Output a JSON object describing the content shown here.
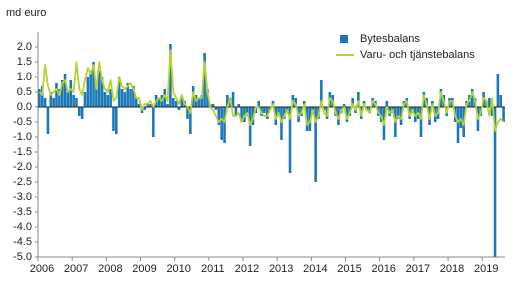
{
  "chart_data": {
    "type": "bar-line",
    "y_axis_label": "md euro",
    "categories": [
      "2006",
      null,
      null,
      null,
      null,
      null,
      null,
      null,
      null,
      null,
      null,
      null,
      "2007",
      null,
      null,
      null,
      null,
      null,
      null,
      null,
      null,
      null,
      null,
      null,
      "2008",
      null,
      null,
      null,
      null,
      null,
      null,
      null,
      null,
      null,
      null,
      null,
      "2009",
      null,
      null,
      null,
      null,
      null,
      null,
      null,
      null,
      null,
      null,
      null,
      "2010",
      null,
      null,
      null,
      null,
      null,
      null,
      null,
      null,
      null,
      null,
      null,
      "2011",
      null,
      null,
      null,
      null,
      null,
      null,
      null,
      null,
      null,
      null,
      null,
      "2012",
      null,
      null,
      null,
      null,
      null,
      null,
      null,
      null,
      null,
      null,
      null,
      "2013",
      null,
      null,
      null,
      null,
      null,
      null,
      null,
      null,
      null,
      null,
      null,
      "2014",
      null,
      null,
      null,
      null,
      null,
      null,
      null,
      null,
      null,
      null,
      null,
      "2015",
      null,
      null,
      null,
      null,
      null,
      null,
      null,
      null,
      null,
      null,
      null,
      "2016",
      null,
      null,
      null,
      null,
      null,
      null,
      null,
      null,
      null,
      null,
      null,
      "2017",
      null,
      null,
      null,
      null,
      null,
      null,
      null,
      null,
      null,
      null,
      null,
      "2018",
      null,
      null,
      null,
      null,
      null,
      null,
      null,
      null,
      null,
      null,
      null,
      "2019",
      null,
      null,
      null,
      null,
      null,
      null,
      null
    ],
    "series": [
      {
        "name": "Bytesbalans",
        "color": "#1a78b8",
        "type": "bar",
        "values": [
          0.6,
          0.7,
          0.3,
          -0.9,
          0.5,
          0.3,
          0.8,
          0.6,
          0.9,
          1.1,
          0.5,
          0.9,
          0.4,
          0.3,
          -0.3,
          -0.4,
          0.5,
          1.0,
          1.2,
          1.5,
          0.8,
          1.2,
          1.0,
          0.5,
          0.4,
          0.6,
          -0.8,
          -0.9,
          1.0,
          0.6,
          0.5,
          0.8,
          0.6,
          0.7,
          0.3,
          0.1,
          -0.2,
          -0.1,
          0.1,
          0.1,
          -1.0,
          0.4,
          0.3,
          0.4,
          0.6,
          0.1,
          2.1,
          0.3,
          0.2,
          -0.1,
          0.3,
          0.2,
          -0.4,
          -0.9,
          0.7,
          0.4,
          0.3,
          0.4,
          1.8,
          0.6,
          0.1,
          0.1,
          -0.1,
          -0.6,
          -1.1,
          -1.2,
          0.4,
          0.3,
          0.5,
          -0.3,
          0.1,
          -0.5,
          -0.5,
          -0.3,
          -1.3,
          -0.6,
          -0.2,
          0.2,
          -0.3,
          -0.2,
          -0.4,
          -0.1,
          0.2,
          -0.6,
          -0.3,
          -1.1,
          -0.4,
          -0.2,
          -2.2,
          0.4,
          0.3,
          -0.5,
          -0.3,
          0.2,
          -0.8,
          -0.8,
          -0.2,
          -2.5,
          -0.4,
          0.9,
          -0.1,
          -0.4,
          0.5,
          0.4,
          -0.3,
          -0.6,
          -0.2,
          0.1,
          -0.5,
          -0.3,
          0.3,
          -0.2,
          0.5,
          -0.4,
          0.2,
          -0.1,
          -0.2,
          0.3,
          0.2,
          -0.3,
          -0.5,
          -1.1,
          0.2,
          -0.3,
          -0.2,
          -1.0,
          -0.4,
          -0.6,
          0.2,
          0.3,
          -0.4,
          -0.2,
          -0.5,
          -0.4,
          -1.0,
          0.5,
          0.3,
          -0.6,
          0.2,
          -0.5,
          -0.4,
          0.6,
          0.4,
          -0.3,
          0.3,
          0.3,
          -0.5,
          -1.2,
          -0.7,
          -1.0,
          0.2,
          0.4,
          0.6,
          0.3,
          -0.8,
          -0.3,
          0.5,
          0.2,
          0.3,
          -0.3,
          -5.0,
          1.1,
          0.4,
          -0.5
        ]
      },
      {
        "name": "Varu- och tjänstebalans",
        "color": "#b5d334",
        "type": "line",
        "values": [
          0.5,
          0.4,
          1.4,
          0.7,
          0.4,
          0.5,
          0.6,
          0.4,
          0.8,
          0.9,
          0.5,
          0.6,
          0.5,
          1.5,
          0.6,
          0.4,
          0.9,
          1.3,
          1.1,
          1.4,
          0.6,
          1.5,
          0.9,
          0.6,
          0.5,
          0.9,
          0.2,
          0.3,
          1.0,
          0.7,
          0.6,
          0.7,
          0.8,
          0.6,
          0.3,
          0.3,
          -0.1,
          0.1,
          0.1,
          0.2,
          0.0,
          0.2,
          0.3,
          0.2,
          0.4,
          0.2,
          1.9,
          0.5,
          0.3,
          0.1,
          0.4,
          0.1,
          0.0,
          -0.2,
          0.5,
          0.2,
          0.3,
          0.3,
          1.5,
          0.5,
          0.0,
          -0.1,
          -0.3,
          -0.5,
          -0.4,
          -0.5,
          0.0,
          0.3,
          -0.3,
          -0.3,
          -0.2,
          -0.5,
          -0.3,
          -0.2,
          -0.6,
          -0.4,
          0.0,
          0.0,
          -0.2,
          -0.3,
          -0.3,
          -0.1,
          0.1,
          -0.4,
          -0.2,
          -0.5,
          -0.3,
          -0.1,
          -0.4,
          0.2,
          0.1,
          -0.3,
          -0.2,
          0.1,
          -0.6,
          -0.5,
          -0.1,
          -0.5,
          -0.3,
          0.2,
          -0.2,
          -0.3,
          0.3,
          0.2,
          -0.2,
          -0.4,
          -0.1,
          0.0,
          -0.4,
          -0.2,
          0.1,
          -0.1,
          0.2,
          -0.3,
          0.1,
          -0.1,
          -0.2,
          0.2,
          0.1,
          -0.2,
          -0.3,
          -0.6,
          0.0,
          -0.2,
          -0.1,
          -0.5,
          -0.3,
          -0.4,
          0.1,
          0.2,
          -0.3,
          -0.1,
          -0.3,
          -0.2,
          -0.4,
          0.4,
          0.1,
          -0.4,
          0.1,
          -0.3,
          -0.2,
          0.5,
          0.2,
          -0.2,
          0.2,
          0.2,
          -0.3,
          -0.5,
          -0.4,
          -0.6,
          0.1,
          0.2,
          0.5,
          0.2,
          -0.4,
          -0.2,
          0.3,
          0.2,
          -0.3,
          0.3,
          -0.8,
          -0.5,
          -0.4,
          -0.5
        ]
      }
    ],
    "ylim": [
      -5,
      2.5
    ],
    "yticks": [
      {
        "value": -5,
        "label": "-5.0"
      },
      -4.5,
      {
        "value": -4,
        "label": "-4.0"
      },
      -3.5,
      {
        "value": -3,
        "label": "-3.0"
      },
      -2.5,
      {
        "value": -2,
        "label": "-2.0"
      },
      -1.5,
      {
        "value": -1,
        "label": "-1.0"
      },
      -0.5,
      {
        "value": 0,
        "label": "0.0"
      },
      0.5,
      {
        "value": 1,
        "label": "1.0"
      },
      1.5,
      {
        "value": 2,
        "label": "2.0"
      }
    ],
    "grid": false,
    "legend": "top-right"
  }
}
